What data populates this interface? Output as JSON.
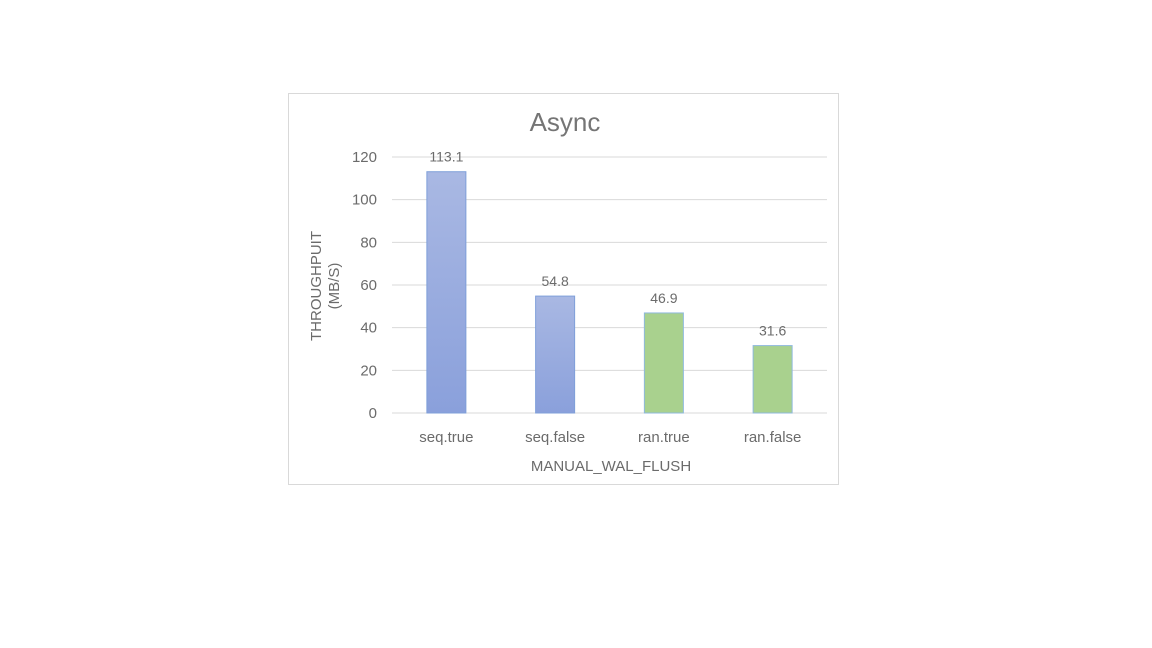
{
  "chart_data": {
    "type": "bar",
    "title": "Async",
    "xlabel": "MANUAL_WAL_FLUSH",
    "ylabel_lines": [
      "THROUGHPUIT",
      "(MB/S)"
    ],
    "categories": [
      "seq.true",
      "seq.false",
      "ran.true",
      "ran.false"
    ],
    "values": [
      113.1,
      54.8,
      46.9,
      31.6
    ],
    "data_labels": [
      "113.1",
      "54.8",
      "46.9",
      "31.6"
    ],
    "bar_fills": [
      "blue-gradient",
      "blue-gradient",
      "green",
      "green"
    ],
    "yticks": [
      0,
      20,
      40,
      60,
      80,
      100,
      120
    ],
    "ylim": [
      0,
      120
    ],
    "grid": true,
    "legend": "none"
  },
  "colors": {
    "blue_top": "#a9b8e3",
    "blue_bottom": "#8aa0db",
    "blue_stroke": "#7f9fd9",
    "green": "#a9d18e",
    "green_stroke": "#8fb9dc"
  }
}
